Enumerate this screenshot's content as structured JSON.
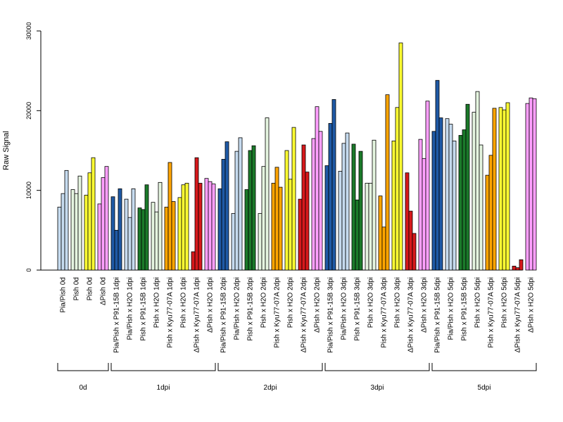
{
  "chart_data": {
    "type": "bar",
    "ylabel": "Raw Signal",
    "ylim": [
      0,
      30000
    ],
    "yticks": [
      0,
      10000,
      20000,
      30000
    ],
    "grid": false,
    "legend": "none",
    "bars_per_group": 3,
    "groups": [
      {
        "label": "Pia/Pish 0d",
        "color": "#c6dbef",
        "values": [
          7900,
          9600,
          12500
        ]
      },
      {
        "label": "Pish 0d",
        "color": "#e5f5e0",
        "values": [
          10100,
          9600,
          11800
        ]
      },
      {
        "label": "Pish 0d",
        "color": "#ffff33",
        "values": [
          9400,
          12200,
          14100
        ]
      },
      {
        "label": "ΔPish 0d",
        "color": "#ffa0ff",
        "values": [
          8300,
          11600,
          13000
        ]
      },
      {
        "label": "Pia/Pish x P91-15B 1dpi",
        "color": "#1f5aa6",
        "values": [
          9200,
          5000,
          10200
        ]
      },
      {
        "label": "Pia/Pish x H2O 1dpi",
        "color": "#c6dbef",
        "values": [
          8900,
          6600,
          10200
        ]
      },
      {
        "label": "Pish x P91-15B 1dpi",
        "color": "#1b7a2a",
        "values": [
          7800,
          7600,
          10700
        ]
      },
      {
        "label": "Pish x H2O 1dpi",
        "color": "#e5f5e0",
        "values": [
          8500,
          7300,
          11000
        ]
      },
      {
        "label": "Pish x Kyu77-07A 1dpi",
        "color": "#ffa500",
        "values": [
          7900,
          13500,
          8600
        ]
      },
      {
        "label": "Pish x H2O 1dpi",
        "color": "#ffff33",
        "values": [
          9100,
          10700,
          10900
        ]
      },
      {
        "label": "ΔPish x Kyu77-07A 1dpi",
        "color": "#d7191c",
        "values": [
          2300,
          14100,
          10900
        ]
      },
      {
        "label": "ΔPish x H2O 1dpi",
        "color": "#ffa0ff",
        "values": [
          11500,
          11100,
          10800
        ]
      },
      {
        "label": "Pia/Pish x P91-15B 2dpi",
        "color": "#1f5aa6",
        "values": [
          10200,
          13900,
          16100
        ]
      },
      {
        "label": "Pia/Pish x H2O 2dpi",
        "color": "#c6dbef",
        "values": [
          7100,
          14900,
          16600
        ]
      },
      {
        "label": "Pish x P91-15B 2dpi",
        "color": "#1b7a2a",
        "values": [
          10100,
          15000,
          15600
        ]
      },
      {
        "label": "Pish x H2O 2dpi",
        "color": "#e5f5e0",
        "values": [
          7100,
          13000,
          19100
        ]
      },
      {
        "label": "Pish x Kyu77-07A 2dpi",
        "color": "#ffa500",
        "values": [
          10900,
          12900,
          10400
        ]
      },
      {
        "label": "Pish x H2O 2dpi",
        "color": "#ffff33",
        "values": [
          15000,
          11400,
          17900
        ]
      },
      {
        "label": "ΔPish x Kyu77-07A 2dpi",
        "color": "#d7191c",
        "values": [
          8900,
          15700,
          12300
        ]
      },
      {
        "label": "ΔPish x H2O 2dpi",
        "color": "#ffa0ff",
        "values": [
          16500,
          20500,
          17400
        ]
      },
      {
        "label": "Pia/Pish x P91-15B 3dpi",
        "color": "#1f5aa6",
        "values": [
          13100,
          18400,
          21400
        ]
      },
      {
        "label": "Pia/Pish x H2O 3dpi",
        "color": "#c6dbef",
        "values": [
          12400,
          15900,
          17200
        ]
      },
      {
        "label": "Pish x P91-15B 3dpi",
        "color": "#1b7a2a",
        "values": [
          15800,
          8800,
          14900
        ]
      },
      {
        "label": "Pish x H2O 3dpi",
        "color": "#e5f5e0",
        "values": [
          10900,
          10900,
          16300
        ]
      },
      {
        "label": "Pish x Kyu77-07A 3dpi",
        "color": "#ffa500",
        "values": [
          9300,
          5400,
          22000
        ]
      },
      {
        "label": "Pish x H2O 3dpi",
        "color": "#ffff33",
        "values": [
          16200,
          20400,
          28500
        ]
      },
      {
        "label": "ΔPish x Kyu77-07A 3dpi",
        "color": "#d7191c",
        "values": [
          12200,
          7400,
          4600
        ]
      },
      {
        "label": "ΔPish x H2O 3dpi",
        "color": "#ffa0ff",
        "values": [
          16400,
          14000,
          21200
        ]
      },
      {
        "label": "Pia/Pish x P91-15B 5dpi",
        "color": "#1f5aa6",
        "values": [
          17400,
          23800,
          19100
        ]
      },
      {
        "label": "Pia/Pish x H2O 5dpi",
        "color": "#c6dbef",
        "values": [
          19000,
          18300,
          16200
        ]
      },
      {
        "label": "Pish x P91-15B 5dpi",
        "color": "#1b7a2a",
        "values": [
          16900,
          17600,
          20800
        ]
      },
      {
        "label": "Pish x H2O 5dpi",
        "color": "#e5f5e0",
        "values": [
          19800,
          22400,
          15700
        ]
      },
      {
        "label": "Pish x Kyu77-07A 5dpi",
        "color": "#ffa500",
        "values": [
          11900,
          14400,
          20300
        ]
      },
      {
        "label": "Pish x H2O 5dpi",
        "color": "#ffff33",
        "values": [
          20400,
          20100,
          21000
        ]
      },
      {
        "label": "ΔPish x Kyu77-07A 5dpi",
        "color": "#d7191c",
        "values": [
          500,
          300,
          1300
        ]
      },
      {
        "label": "ΔPish x H2O 5dpi",
        "color": "#ffa0ff",
        "values": [
          20900,
          21600,
          21500
        ]
      }
    ],
    "timepoints": [
      {
        "label": "0d",
        "first_group": 0,
        "last_group": 3
      },
      {
        "label": "1dpi",
        "first_group": 4,
        "last_group": 11
      },
      {
        "label": "2dpi",
        "first_group": 12,
        "last_group": 19
      },
      {
        "label": "3dpi",
        "first_group": 20,
        "last_group": 27
      },
      {
        "label": "5dpi",
        "first_group": 28,
        "last_group": 35
      }
    ]
  }
}
